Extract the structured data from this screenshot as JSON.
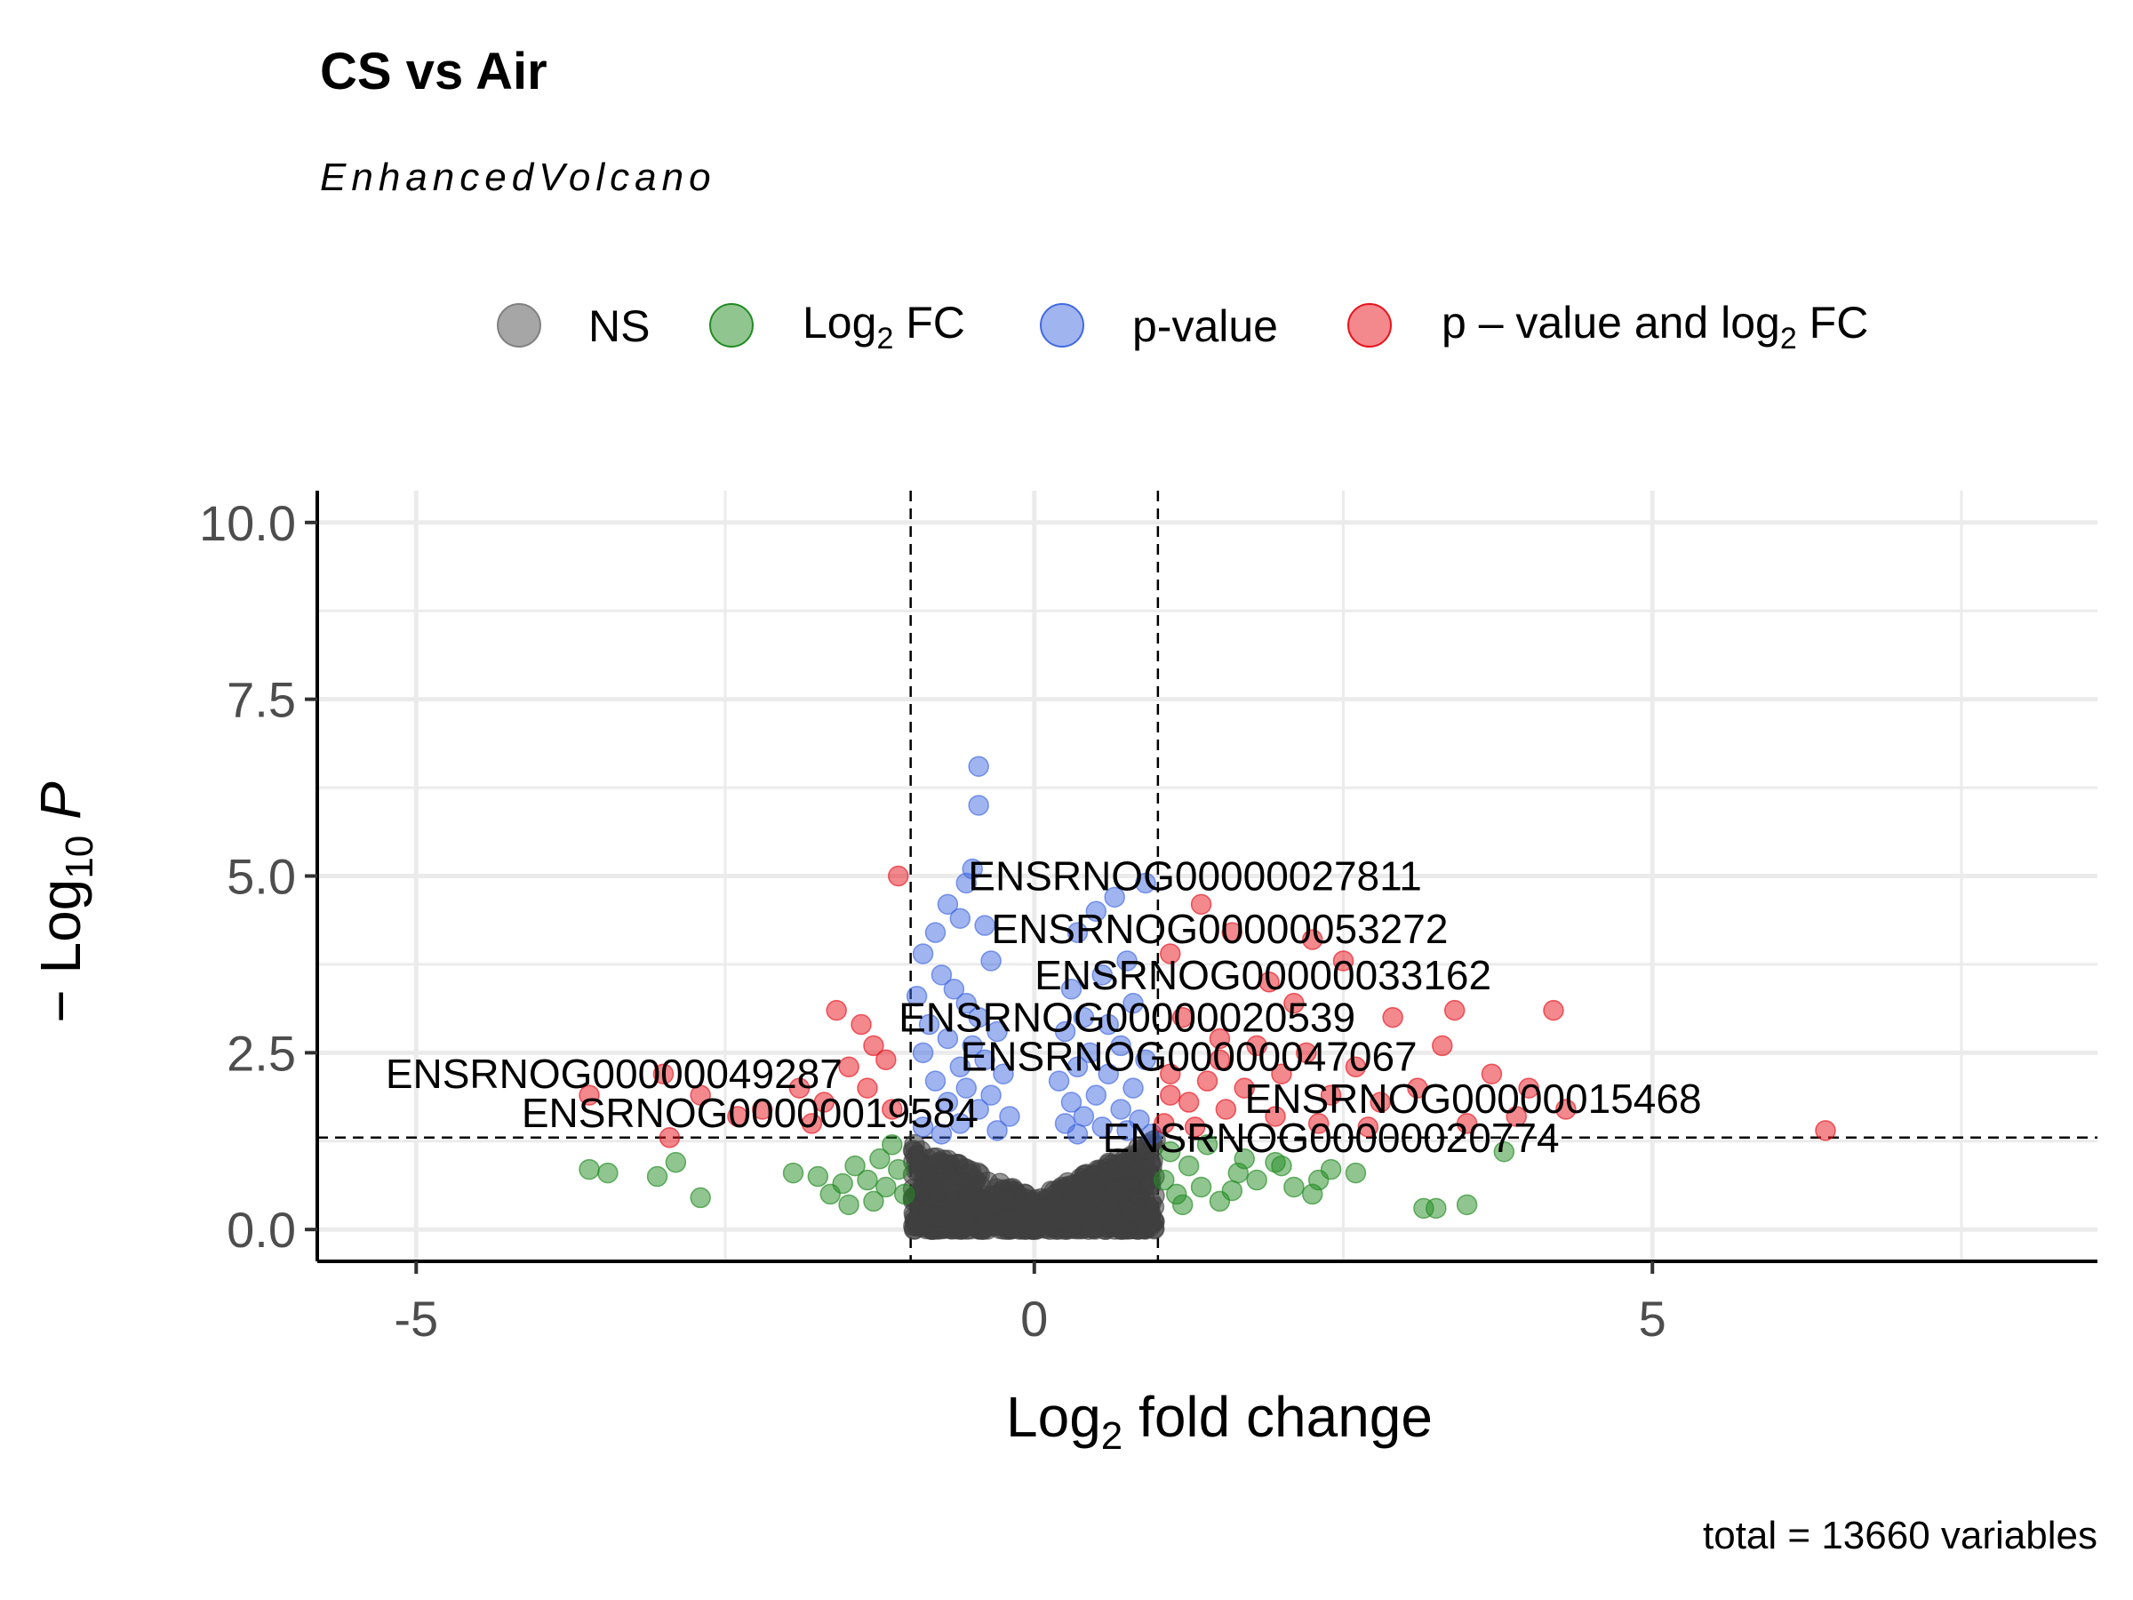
{
  "title": "CS vs Air",
  "subtitle": "EnhancedVolcano",
  "caption": "total = 13660 variables",
  "legend": [
    {
      "label": "NS",
      "color": "#808080"
    },
    {
      "label": "Log2 FC",
      "color": "#228b22"
    },
    {
      "label": "p-value",
      "color": "#4169e1"
    },
    {
      "label": "p – value and log2 FC",
      "color": "#e8121b"
    }
  ],
  "chart_data": {
    "type": "scatter",
    "xlabel": "Log2 fold change",
    "ylabel": "−Log10 P",
    "xlim": [
      -5.8,
      8.6
    ],
    "ylim": [
      -0.45,
      10.45
    ],
    "xticks": [
      -5,
      0,
      5
    ],
    "xtick_labels": [
      "-5",
      "0",
      "5"
    ],
    "yticks": [
      0,
      2.5,
      5,
      7.5,
      10
    ],
    "ytick_labels": [
      "0.0",
      "2.5",
      "5.0",
      "7.5",
      "10.0"
    ],
    "fc_cutoff": 1,
    "p_cutoff_neglog10": 1.3,
    "grid": true,
    "legend_position": "top",
    "series": [
      {
        "name": "p-value",
        "color": "#4169e1",
        "points": [
          [
            -0.45,
            6.55
          ],
          [
            -0.45,
            6.0
          ],
          [
            -0.5,
            5.1
          ],
          [
            -0.55,
            4.9
          ],
          [
            -0.7,
            4.6
          ],
          [
            -0.6,
            4.4
          ],
          [
            -0.4,
            4.3
          ],
          [
            -0.8,
            4.2
          ],
          [
            -0.9,
            3.9
          ],
          [
            -0.35,
            3.8
          ],
          [
            -0.75,
            3.6
          ],
          [
            -0.65,
            3.4
          ],
          [
            -0.95,
            3.3
          ],
          [
            -0.55,
            3.2
          ],
          [
            -0.45,
            3.0
          ],
          [
            -0.85,
            2.9
          ],
          [
            -0.3,
            2.8
          ],
          [
            -0.7,
            2.7
          ],
          [
            -0.5,
            2.6
          ],
          [
            -0.9,
            2.5
          ],
          [
            -0.4,
            2.4
          ],
          [
            -0.6,
            2.3
          ],
          [
            -0.25,
            2.2
          ],
          [
            -0.8,
            2.1
          ],
          [
            -0.55,
            2.0
          ],
          [
            -0.35,
            1.9
          ],
          [
            -0.7,
            1.8
          ],
          [
            -0.45,
            1.7
          ],
          [
            -0.2,
            1.6
          ],
          [
            -0.6,
            1.5
          ],
          [
            -0.9,
            1.45
          ],
          [
            -0.3,
            1.4
          ],
          [
            -0.75,
            1.35
          ],
          [
            0.65,
            4.7
          ],
          [
            0.5,
            4.5
          ],
          [
            0.35,
            4.2
          ],
          [
            0.75,
            3.8
          ],
          [
            0.55,
            3.6
          ],
          [
            0.3,
            3.4
          ],
          [
            0.8,
            3.2
          ],
          [
            0.4,
            3.0
          ],
          [
            0.6,
            2.9
          ],
          [
            0.25,
            2.8
          ],
          [
            0.7,
            2.6
          ],
          [
            0.45,
            2.5
          ],
          [
            0.9,
            2.4
          ],
          [
            0.35,
            2.3
          ],
          [
            0.6,
            2.2
          ],
          [
            0.2,
            2.1
          ],
          [
            0.8,
            2.0
          ],
          [
            0.5,
            1.9
          ],
          [
            0.3,
            1.8
          ],
          [
            0.7,
            1.7
          ],
          [
            0.4,
            1.6
          ],
          [
            0.85,
            1.55
          ],
          [
            0.25,
            1.5
          ],
          [
            0.55,
            1.45
          ],
          [
            0.75,
            1.4
          ],
          [
            0.35,
            1.35
          ],
          [
            0.95,
            1.35
          ],
          [
            0.9,
            4.9
          ]
        ]
      },
      {
        "name": "p – value and log2 FC",
        "color": "#e8121b",
        "points": [
          [
            -1.1,
            5.0
          ],
          [
            -1.6,
            3.1
          ],
          [
            -1.4,
            2.9
          ],
          [
            -1.3,
            2.6
          ],
          [
            -1.5,
            2.3
          ],
          [
            -1.35,
            2.0
          ],
          [
            -1.7,
            1.8
          ],
          [
            -1.2,
            2.4
          ],
          [
            -1.9,
            2.0
          ],
          [
            -2.2,
            1.7
          ],
          [
            -2.4,
            1.6
          ],
          [
            -2.7,
            1.9
          ],
          [
            -3.0,
            2.2
          ],
          [
            -3.6,
            1.9
          ],
          [
            -2.95,
            1.3
          ],
          [
            -1.8,
            1.5
          ],
          [
            -1.15,
            1.7
          ],
          [
            1.35,
            4.6
          ],
          [
            1.6,
            4.2
          ],
          [
            2.25,
            4.1
          ],
          [
            2.5,
            3.8
          ],
          [
            1.1,
            3.9
          ],
          [
            1.9,
            3.5
          ],
          [
            2.1,
            3.2
          ],
          [
            3.4,
            3.1
          ],
          [
            4.2,
            3.1
          ],
          [
            2.9,
            3.0
          ],
          [
            1.2,
            3.0
          ],
          [
            1.5,
            2.7
          ],
          [
            1.8,
            2.6
          ],
          [
            2.2,
            2.5
          ],
          [
            3.3,
            2.6
          ],
          [
            2.6,
            2.3
          ],
          [
            1.1,
            2.2
          ],
          [
            1.4,
            2.1
          ],
          [
            1.7,
            2.0
          ],
          [
            2.0,
            2.2
          ],
          [
            2.4,
            1.9
          ],
          [
            2.8,
            1.8
          ],
          [
            3.1,
            2.0
          ],
          [
            3.7,
            2.2
          ],
          [
            4.0,
            2.0
          ],
          [
            4.3,
            1.7
          ],
          [
            1.25,
            1.8
          ],
          [
            1.55,
            1.7
          ],
          [
            1.95,
            1.6
          ],
          [
            2.3,
            1.5
          ],
          [
            3.5,
            1.5
          ],
          [
            6.4,
            1.4
          ],
          [
            1.05,
            1.5
          ],
          [
            1.3,
            1.45
          ],
          [
            2.7,
            1.45
          ],
          [
            3.9,
            1.6
          ],
          [
            1.1,
            1.9
          ],
          [
            1.5,
            2.4
          ]
        ]
      },
      {
        "name": "Log2 FC",
        "color": "#228b22",
        "points": [
          [
            -3.6,
            0.85
          ],
          [
            -3.45,
            0.8
          ],
          [
            -3.05,
            0.75
          ],
          [
            -2.9,
            0.95
          ],
          [
            -2.7,
            0.45
          ],
          [
            -1.95,
            0.8
          ],
          [
            -1.75,
            0.75
          ],
          [
            -1.65,
            0.5
          ],
          [
            -1.55,
            0.65
          ],
          [
            -1.45,
            0.9
          ],
          [
            -1.35,
            0.7
          ],
          [
            -1.3,
            0.4
          ],
          [
            -1.2,
            0.6
          ],
          [
            -1.1,
            0.85
          ],
          [
            -1.05,
            0.5
          ],
          [
            -1.5,
            0.35
          ],
          [
            -1.25,
            1.0
          ],
          [
            -1.15,
            1.2
          ],
          [
            1.05,
            0.7
          ],
          [
            1.15,
            0.5
          ],
          [
            1.25,
            0.9
          ],
          [
            1.35,
            0.6
          ],
          [
            1.5,
            0.4
          ],
          [
            1.65,
            0.8
          ],
          [
            1.8,
            0.7
          ],
          [
            1.95,
            0.95
          ],
          [
            2.1,
            0.6
          ],
          [
            2.25,
            0.5
          ],
          [
            2.4,
            0.85
          ],
          [
            2.6,
            0.8
          ],
          [
            3.15,
            0.3
          ],
          [
            3.25,
            0.3
          ],
          [
            3.5,
            0.35
          ],
          [
            3.8,
            1.1
          ],
          [
            1.1,
            1.1
          ],
          [
            1.4,
            1.2
          ],
          [
            1.7,
            1.0
          ],
          [
            2.0,
            0.9
          ],
          [
            2.3,
            0.7
          ],
          [
            1.2,
            0.35
          ],
          [
            1.6,
            0.55
          ]
        ]
      }
    ],
    "labels": [
      {
        "text": "ENSRNOG00000027811",
        "x": 1.3,
        "y": 5.0
      },
      {
        "text": "ENSRNOG00000053272",
        "x": 1.5,
        "y": 4.25
      },
      {
        "text": "ENSRNOG00000033162",
        "x": 1.85,
        "y": 3.6
      },
      {
        "text": "ENSRNOG00000020539",
        "x": 0.75,
        "y": 3.0
      },
      {
        "text": "ENSRNOG00000047067",
        "x": 1.25,
        "y": 2.45
      },
      {
        "text": "ENSRNOG00000049287",
        "x": -3.4,
        "y": 2.2
      },
      {
        "text": "ENSRNOG00000015468",
        "x": 3.55,
        "y": 1.85
      },
      {
        "text": "ENSRNOG00000019584",
        "x": -2.3,
        "y": 1.65
      },
      {
        "text": "ENSRNOG00000020774",
        "x": 2.4,
        "y": 1.3
      }
    ]
  }
}
